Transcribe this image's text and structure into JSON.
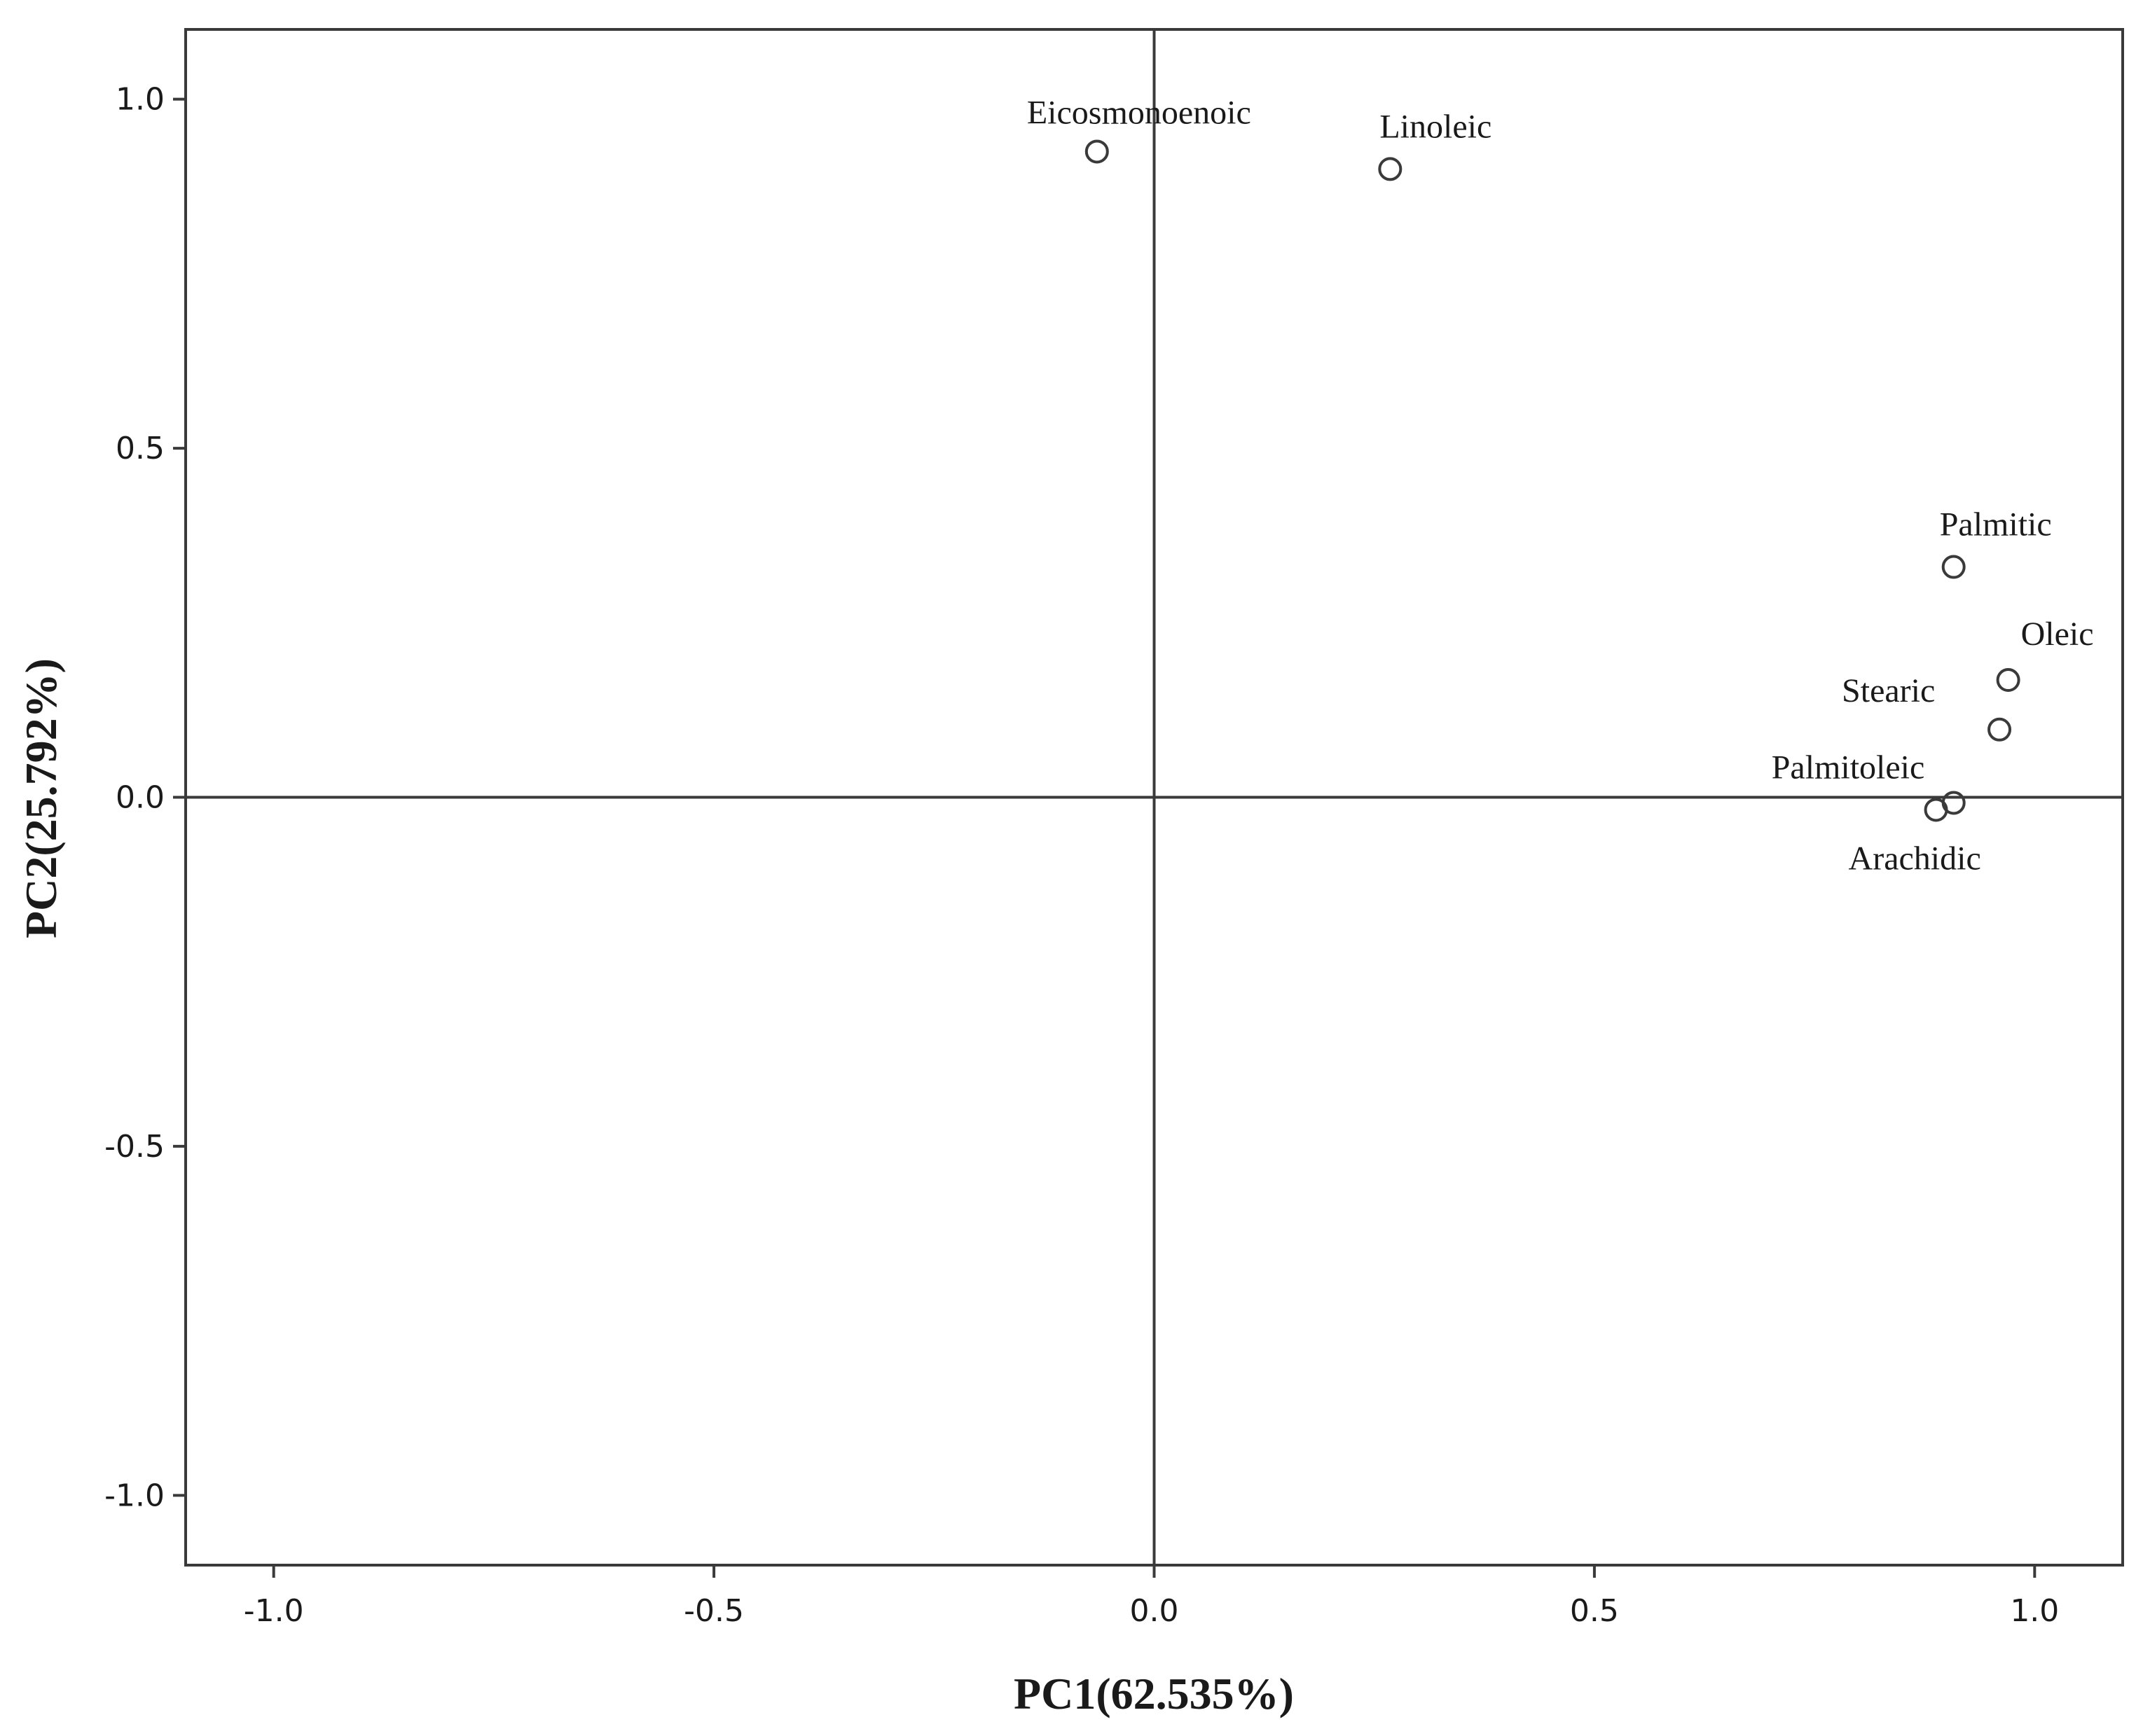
{
  "chart_data": {
    "type": "scatter",
    "xlabel": "PC1(62.535%)",
    "ylabel": "PC2(25.792%)",
    "xlim": [
      -1.1,
      1.1
    ],
    "ylim": [
      -1.1,
      1.1
    ],
    "x_ticks": [
      -1.0,
      -0.5,
      0.0,
      0.5,
      1.0
    ],
    "x_tick_labels": [
      "-1.0",
      "-0.5",
      "0.0",
      "0.5",
      "1.0"
    ],
    "y_ticks": [
      1.0,
      0.5,
      0.0,
      -0.5,
      -1.0
    ],
    "y_tick_labels": [
      "1.0",
      "0.5",
      "0.0",
      "-0.5",
      "-1.0"
    ],
    "reference_lines": {
      "x": 0.0,
      "y": 0.0
    },
    "grid": false,
    "marker": "open-circle",
    "points": [
      {
        "label": "Eicosmonoenoic",
        "x": -0.065,
        "y": 0.925
      },
      {
        "label": "Linoleic",
        "x": 0.268,
        "y": 0.9
      },
      {
        "label": "Palmitic",
        "x": 0.908,
        "y": 0.33
      },
      {
        "label": "Oleic",
        "x": 0.97,
        "y": 0.168
      },
      {
        "label": "Stearic",
        "x": 0.96,
        "y": 0.097
      },
      {
        "label": "Palmitoleic",
        "x": 0.908,
        "y": -0.008
      },
      {
        "label": "Arachidic",
        "x": 0.888,
        "y": -0.018
      }
    ]
  }
}
